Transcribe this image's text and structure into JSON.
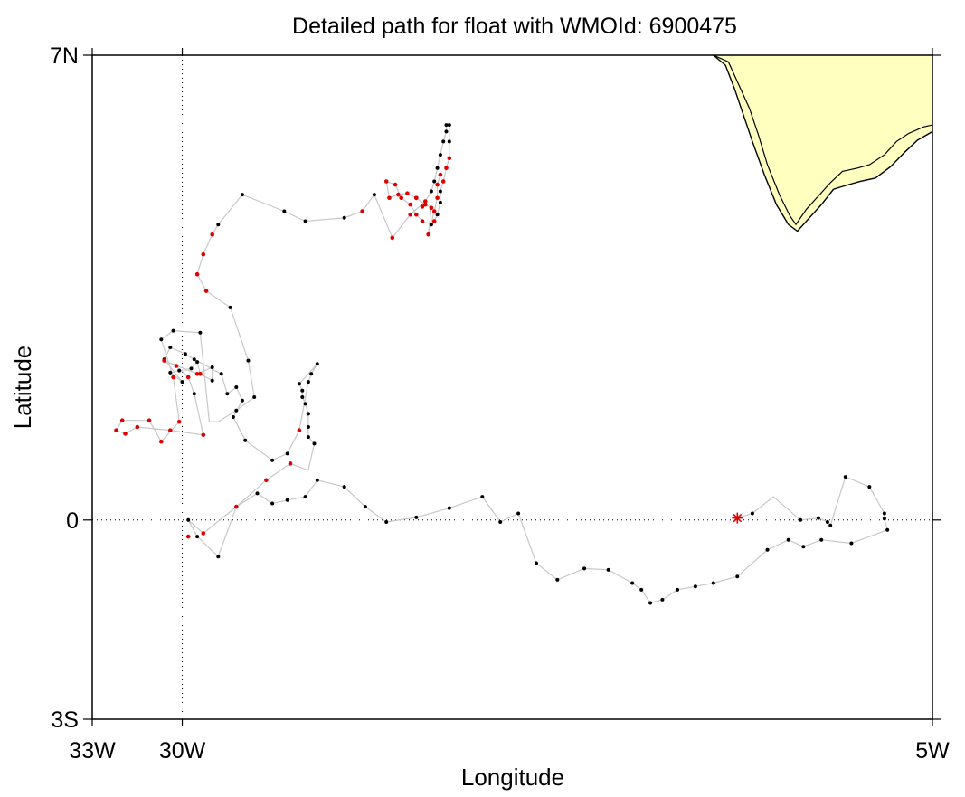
{
  "title": "Detailed path for float with WMOId: 6900475",
  "chart_data": {
    "type": "scatter",
    "title": "Detailed path for float with WMOId: 6900475",
    "xlabel": "Longitude",
    "ylabel": "Latitude",
    "xlim": [
      -33,
      -5
    ],
    "ylim": [
      -3,
      7
    ],
    "x_ticks": [
      {
        "value": -33,
        "label": "33W"
      },
      {
        "value": -30,
        "label": "30W"
      },
      {
        "value": -5,
        "label": "5W"
      }
    ],
    "y_ticks": [
      {
        "value": 7,
        "label": "7N"
      },
      {
        "value": 0,
        "label": "0"
      },
      {
        "value": -3,
        "label": "3S"
      }
    ],
    "reference_lines": [
      {
        "axis": "x",
        "value": -30,
        "style": "dotted"
      },
      {
        "axis": "y",
        "value": 0,
        "style": "dotted"
      }
    ],
    "land_color": "#ffffc0",
    "path_color": "#c8c8c8",
    "series": [
      {
        "color": "#e00000",
        "marker": "asterisk",
        "points": [
          [
            -11.5,
            0.03
          ]
        ]
      }
    ],
    "track": [
      [
        -11.5,
        0.03
      ],
      [
        -11.0,
        0.1
      ],
      [
        -10.3,
        0.35
      ],
      [
        -9.4,
        0.0
      ],
      [
        -8.8,
        0.03
      ],
      [
        -8.5,
        -0.03
      ],
      [
        -8.4,
        -0.08
      ],
      [
        -7.9,
        0.65
      ],
      [
        -7.1,
        0.5
      ],
      [
        -6.6,
        0.1
      ],
      [
        -6.6,
        0.02
      ],
      [
        -6.5,
        -0.15
      ],
      [
        -7.7,
        -0.35
      ],
      [
        -8.7,
        -0.3
      ],
      [
        -9.3,
        -0.4
      ],
      [
        -9.8,
        -0.3
      ],
      [
        -10.5,
        -0.45
      ],
      [
        -11.5,
        -0.85
      ],
      [
        -12.3,
        -0.95
      ],
      [
        -12.9,
        -1.0
      ],
      [
        -13.5,
        -1.05
      ],
      [
        -14.0,
        -1.2
      ],
      [
        -14.4,
        -1.25
      ],
      [
        -14.7,
        -1.05
      ],
      [
        -15.0,
        -0.95
      ],
      [
        -15.8,
        -0.75
      ],
      [
        -16.6,
        -0.73
      ],
      [
        -17.5,
        -0.9
      ],
      [
        -18.2,
        -0.65
      ],
      [
        -18.8,
        0.1
      ],
      [
        -19.4,
        -0.03
      ],
      [
        -20.0,
        0.35
      ],
      [
        -21.1,
        0.18
      ],
      [
        -22.2,
        0.04
      ],
      [
        -23.2,
        -0.03
      ],
      [
        -23.9,
        0.2
      ],
      [
        -24.6,
        0.5
      ],
      [
        -25.5,
        0.6
      ],
      [
        -25.9,
        0.35
      ],
      [
        -26.5,
        0.3
      ],
      [
        -27.0,
        0.25
      ],
      [
        -27.5,
        0.4
      ],
      [
        -28.2,
        0.2
      ],
      [
        -28.8,
        -0.55
      ],
      [
        -29.5,
        -0.25
      ],
      [
        -29.8,
        0.0
      ],
      [
        -29.3,
        -0.2
      ],
      [
        -28.2,
        0.2
      ],
      [
        -27.2,
        0.6
      ],
      [
        -26.4,
        0.85
      ],
      [
        -25.8,
        0.75
      ],
      [
        -25.6,
        1.15
      ],
      [
        -25.8,
        1.25
      ],
      [
        -25.8,
        1.4
      ],
      [
        -25.8,
        1.6
      ],
      [
        -25.9,
        1.75
      ],
      [
        -26.0,
        1.85
      ],
      [
        -26.0,
        1.95
      ],
      [
        -26.1,
        2.05
      ],
      [
        -25.5,
        2.35
      ],
      [
        -25.7,
        2.2
      ],
      [
        -25.8,
        2.08
      ],
      [
        -26.1,
        1.35
      ],
      [
        -26.5,
        1.0
      ],
      [
        -27.0,
        0.9
      ],
      [
        -27.9,
        1.2
      ],
      [
        -28.3,
        1.55
      ],
      [
        -28.0,
        1.8
      ],
      [
        -28.2,
        2.0
      ],
      [
        -28.5,
        1.9
      ],
      [
        -28.7,
        2.2
      ],
      [
        -29.6,
        2.42
      ],
      [
        -29.9,
        2.5
      ],
      [
        -30.4,
        2.6
      ],
      [
        -30.6,
        2.42
      ],
      [
        -30.0,
        2.08
      ],
      [
        -30.4,
        2.22
      ],
      [
        -30.1,
        2.25
      ],
      [
        -29.7,
        2.28
      ],
      [
        -29.5,
        2.38
      ],
      [
        -29.4,
        2.2
      ],
      [
        -29.0,
        2.1
      ],
      [
        -29.0,
        2.3
      ],
      [
        -29.5,
        2.2
      ],
      [
        -30.6,
        2.4
      ],
      [
        -30.2,
        2.32
      ],
      [
        -29.8,
        2.15
      ],
      [
        -29.6,
        1.9
      ],
      [
        -29.3,
        1.28
      ],
      [
        -30.4,
        1.35
      ],
      [
        -31.5,
        1.4
      ],
      [
        -31.9,
        1.3
      ],
      [
        -32.2,
        1.35
      ],
      [
        -32.0,
        1.5
      ],
      [
        -31.1,
        1.5
      ],
      [
        -30.7,
        1.18
      ],
      [
        -30.1,
        1.48
      ],
      [
        -30.3,
        2.15
      ],
      [
        -30.7,
        2.72
      ],
      [
        -30.3,
        2.85
      ],
      [
        -29.4,
        2.82
      ],
      [
        -29.1,
        1.48
      ],
      [
        -28.8,
        1.48
      ],
      [
        -28.2,
        1.65
      ],
      [
        -27.6,
        1.85
      ],
      [
        -27.8,
        2.4
      ],
      [
        -28.4,
        3.2
      ],
      [
        -29.2,
        3.45
      ],
      [
        -29.5,
        3.7
      ],
      [
        -29.3,
        4.0
      ],
      [
        -29.0,
        4.3
      ],
      [
        -28.8,
        4.45
      ],
      [
        -28.0,
        4.9
      ],
      [
        -26.6,
        4.65
      ],
      [
        -25.9,
        4.5
      ],
      [
        -24.6,
        4.55
      ],
      [
        -24.0,
        4.65
      ],
      [
        -23.6,
        4.9
      ],
      [
        -23.0,
        4.25
      ],
      [
        -22.4,
        4.6
      ],
      [
        -21.9,
        4.8
      ],
      [
        -21.7,
        4.95
      ],
      [
        -21.6,
        5.1
      ],
      [
        -21.5,
        5.3
      ],
      [
        -21.4,
        5.5
      ],
      [
        -21.3,
        5.7
      ],
      [
        -21.2,
        5.85
      ],
      [
        -21.2,
        5.95
      ],
      [
        -21.1,
        5.95
      ],
      [
        -21.1,
        5.7
      ],
      [
        -21.1,
        5.45
      ],
      [
        -21.2,
        5.3
      ],
      [
        -21.3,
        5.1
      ],
      [
        -21.4,
        4.95
      ],
      [
        -21.4,
        4.78
      ],
      [
        -21.5,
        4.6
      ],
      [
        -21.6,
        4.5
      ],
      [
        -21.7,
        4.45
      ],
      [
        -22.0,
        4.5
      ],
      [
        -22.2,
        4.6
      ],
      [
        -22.4,
        4.75
      ],
      [
        -22.7,
        4.85
      ],
      [
        -22.9,
        5.05
      ],
      [
        -23.2,
        5.1
      ],
      [
        -23.1,
        4.85
      ],
      [
        -22.8,
        4.9
      ],
      [
        -22.5,
        4.92
      ],
      [
        -22.2,
        4.85
      ],
      [
        -21.9,
        4.75
      ],
      [
        -21.7,
        4.7
      ],
      [
        -21.8,
        4.3
      ],
      [
        -21.6,
        4.65
      ],
      [
        -21.5,
        4.85
      ],
      [
        -21.5,
        5.05
      ],
      [
        -21.4,
        5.2
      ]
    ],
    "black_points": [
      [
        -11.0,
        0.1
      ],
      [
        -9.4,
        0.0
      ],
      [
        -8.8,
        0.03
      ],
      [
        -8.5,
        -0.03
      ],
      [
        -8.4,
        -0.08
      ],
      [
        -7.9,
        0.65
      ],
      [
        -7.1,
        0.5
      ],
      [
        -6.6,
        0.1
      ],
      [
        -6.6,
        0.02
      ],
      [
        -6.5,
        -0.15
      ],
      [
        -7.7,
        -0.35
      ],
      [
        -8.7,
        -0.3
      ],
      [
        -9.3,
        -0.4
      ],
      [
        -9.8,
        -0.3
      ],
      [
        -10.5,
        -0.45
      ],
      [
        -11.5,
        -0.85
      ],
      [
        -12.3,
        -0.95
      ],
      [
        -12.9,
        -1.0
      ],
      [
        -13.5,
        -1.05
      ],
      [
        -14.0,
        -1.2
      ],
      [
        -14.4,
        -1.25
      ],
      [
        -14.7,
        -1.05
      ],
      [
        -15.0,
        -0.95
      ],
      [
        -15.8,
        -0.75
      ],
      [
        -16.6,
        -0.73
      ],
      [
        -17.5,
        -0.9
      ],
      [
        -18.2,
        -0.65
      ],
      [
        -18.8,
        0.1
      ],
      [
        -19.4,
        -0.03
      ],
      [
        -20.0,
        0.35
      ],
      [
        -21.1,
        0.18
      ],
      [
        -22.2,
        0.04
      ],
      [
        -23.2,
        -0.03
      ],
      [
        -23.9,
        0.2
      ],
      [
        -24.6,
        0.5
      ],
      [
        -25.5,
        0.6
      ],
      [
        -25.9,
        0.35
      ],
      [
        -26.5,
        0.3
      ],
      [
        -27.0,
        0.25
      ],
      [
        -27.5,
        0.4
      ],
      [
        -28.8,
        -0.55
      ],
      [
        -29.5,
        -0.25
      ],
      [
        -29.8,
        0.0
      ],
      [
        -25.6,
        1.15
      ],
      [
        -25.8,
        1.25
      ],
      [
        -25.8,
        1.4
      ],
      [
        -25.8,
        1.6
      ],
      [
        -25.9,
        1.75
      ],
      [
        -26.0,
        1.85
      ],
      [
        -26.0,
        1.95
      ],
      [
        -26.1,
        2.05
      ],
      [
        -25.5,
        2.35
      ],
      [
        -25.7,
        2.2
      ],
      [
        -25.8,
        2.08
      ],
      [
        -26.5,
        1.0
      ],
      [
        -27.0,
        0.9
      ],
      [
        -27.9,
        1.2
      ],
      [
        -28.3,
        1.55
      ],
      [
        -28.0,
        1.8
      ],
      [
        -28.2,
        2.0
      ],
      [
        -28.5,
        1.9
      ],
      [
        -28.7,
        2.2
      ],
      [
        -29.6,
        2.42
      ],
      [
        -29.9,
        2.5
      ],
      [
        -30.4,
        2.6
      ],
      [
        -30.6,
        2.42
      ],
      [
        -30.0,
        2.08
      ],
      [
        -30.4,
        2.22
      ],
      [
        -30.1,
        2.25
      ],
      [
        -29.7,
        2.28
      ],
      [
        -29.5,
        2.38
      ],
      [
        -29.4,
        2.2
      ],
      [
        -29.0,
        2.1
      ],
      [
        -29.0,
        2.3
      ],
      [
        -29.6,
        1.9
      ],
      [
        -30.7,
        2.72
      ],
      [
        -30.3,
        2.85
      ],
      [
        -29.4,
        2.82
      ],
      [
        -28.2,
        1.65
      ],
      [
        -27.6,
        1.85
      ],
      [
        -27.8,
        2.4
      ],
      [
        -28.4,
        3.2
      ],
      [
        -28.8,
        4.45
      ],
      [
        -28.0,
        4.9
      ],
      [
        -26.6,
        4.65
      ],
      [
        -25.9,
        4.5
      ],
      [
        -24.6,
        4.55
      ],
      [
        -23.6,
        4.9
      ],
      [
        -21.7,
        4.95
      ],
      [
        -21.6,
        5.1
      ],
      [
        -21.5,
        5.3
      ],
      [
        -21.4,
        5.5
      ],
      [
        -21.3,
        5.7
      ],
      [
        -21.2,
        5.85
      ],
      [
        -21.2,
        5.95
      ],
      [
        -21.1,
        5.95
      ],
      [
        -21.1,
        5.7
      ],
      [
        -21.4,
        4.78
      ],
      [
        -21.7,
        4.45
      ],
      [
        -21.5,
        4.6
      ],
      [
        -21.4,
        4.95
      ]
    ],
    "red_points": [
      [
        -27.2,
        0.6
      ],
      [
        -26.4,
        0.85
      ],
      [
        -28.2,
        0.2
      ],
      [
        -29.3,
        -0.2
      ],
      [
        -29.8,
        -0.25
      ],
      [
        -26.1,
        1.35
      ],
      [
        -30.4,
        1.35
      ],
      [
        -31.5,
        1.4
      ],
      [
        -31.9,
        1.3
      ],
      [
        -32.2,
        1.35
      ],
      [
        -32.0,
        1.5
      ],
      [
        -31.1,
        1.5
      ],
      [
        -30.7,
        1.18
      ],
      [
        -30.1,
        1.48
      ],
      [
        -30.3,
        2.15
      ],
      [
        -29.4,
        2.2
      ],
      [
        -29.5,
        2.2
      ],
      [
        -30.6,
        2.4
      ],
      [
        -30.2,
        2.32
      ],
      [
        -29.8,
        2.15
      ],
      [
        -29.3,
        1.28
      ],
      [
        -29.2,
        3.45
      ],
      [
        -29.5,
        3.7
      ],
      [
        -29.3,
        4.0
      ],
      [
        -29.0,
        4.3
      ],
      [
        -24.0,
        4.65
      ],
      [
        -23.0,
        4.25
      ],
      [
        -22.4,
        4.6
      ],
      [
        -21.9,
        4.8
      ],
      [
        -21.6,
        4.5
      ],
      [
        -22.0,
        4.5
      ],
      [
        -22.2,
        4.6
      ],
      [
        -22.4,
        4.75
      ],
      [
        -22.7,
        4.85
      ],
      [
        -22.9,
        5.05
      ],
      [
        -23.2,
        5.1
      ],
      [
        -23.1,
        4.85
      ],
      [
        -22.8,
        4.9
      ],
      [
        -22.5,
        4.92
      ],
      [
        -22.2,
        4.85
      ],
      [
        -21.9,
        4.75
      ],
      [
        -21.7,
        4.7
      ],
      [
        -21.8,
        4.3
      ],
      [
        -21.6,
        4.65
      ],
      [
        -21.5,
        4.85
      ],
      [
        -21.5,
        5.05
      ],
      [
        -21.4,
        5.2
      ],
      [
        -21.1,
        5.45
      ],
      [
        -21.2,
        5.3
      ],
      [
        -21.3,
        5.1
      ],
      [
        -22.2,
        4.85
      ],
      [
        -22.0,
        4.72
      ]
    ],
    "coast_outer": [
      [
        -12.3,
        7.0
      ],
      [
        -11.9,
        6.85
      ],
      [
        -11.6,
        6.5
      ],
      [
        -11.3,
        6.1
      ],
      [
        -11.0,
        5.7
      ],
      [
        -10.6,
        5.2
      ],
      [
        -10.2,
        4.75
      ],
      [
        -9.8,
        4.45
      ],
      [
        -9.5,
        4.35
      ],
      [
        -9.1,
        4.55
      ],
      [
        -8.7,
        4.75
      ],
      [
        -8.3,
        4.98
      ],
      [
        -7.8,
        5.05
      ],
      [
        -7.4,
        5.1
      ],
      [
        -6.9,
        5.15
      ],
      [
        -6.4,
        5.32
      ],
      [
        -5.9,
        5.55
      ],
      [
        -5.5,
        5.72
      ],
      [
        -5.0,
        5.85
      ]
    ],
    "coast_inner": [
      [
        -12.3,
        7.0
      ],
      [
        -11.8,
        6.9
      ],
      [
        -11.5,
        6.6
      ],
      [
        -11.1,
        6.2
      ],
      [
        -10.8,
        5.8
      ],
      [
        -10.5,
        5.35
      ],
      [
        -10.1,
        4.9
      ],
      [
        -9.75,
        4.58
      ],
      [
        -9.55,
        4.45
      ],
      [
        -9.2,
        4.68
      ],
      [
        -8.8,
        4.88
      ],
      [
        -8.4,
        5.08
      ],
      [
        -8.0,
        5.25
      ],
      [
        -7.5,
        5.3
      ],
      [
        -7.1,
        5.35
      ],
      [
        -6.6,
        5.5
      ],
      [
        -6.2,
        5.7
      ],
      [
        -5.8,
        5.82
      ],
      [
        -5.3,
        5.92
      ],
      [
        -5.0,
        5.95
      ]
    ]
  }
}
